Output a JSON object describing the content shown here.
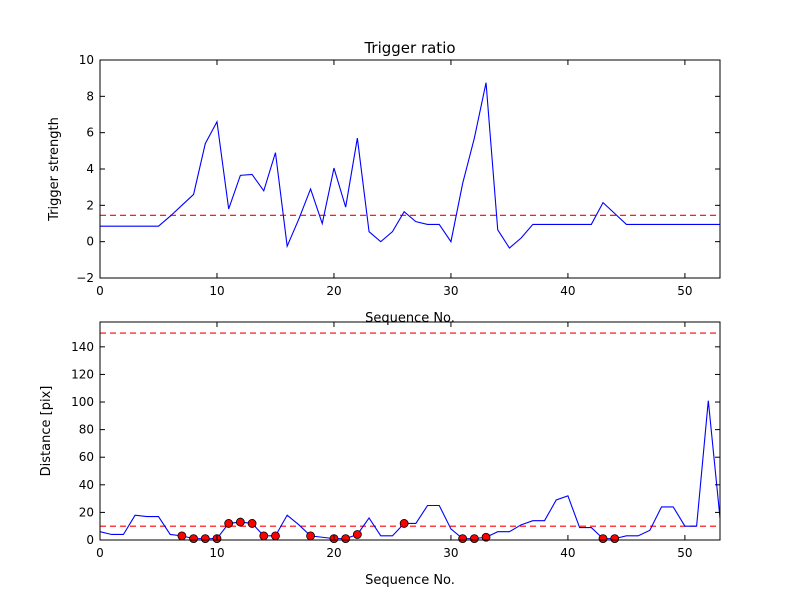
{
  "chart_data": [
    {
      "type": "line",
      "title": "Trigger ratio",
      "xlabel": "Sequence No.",
      "ylabel": "Trigger strength",
      "xlim": [
        0,
        53
      ],
      "ylim": [
        -2,
        10
      ],
      "xticks": [
        0,
        10,
        20,
        30,
        40,
        50
      ],
      "yticks": [
        -2,
        0,
        2,
        4,
        6,
        8,
        10
      ],
      "grid": false,
      "series": [
        {
          "color": "#0000ff",
          "x": [
            0,
            1,
            2,
            3,
            4,
            5,
            6,
            7,
            8,
            9,
            10,
            11,
            12,
            13,
            14,
            15,
            16,
            17,
            18,
            19,
            20,
            21,
            22,
            23,
            24,
            25,
            26,
            27,
            28,
            29,
            30,
            31,
            32,
            33,
            34,
            35,
            36,
            37,
            38,
            39,
            40,
            41,
            42,
            43,
            44,
            45,
            46,
            47,
            48,
            49,
            50,
            51,
            52,
            53
          ],
          "y": [
            0.85,
            0.85,
            0.85,
            0.85,
            0.85,
            0.85,
            1.4,
            2.0,
            2.6,
            5.4,
            6.6,
            1.8,
            3.65,
            3.7,
            2.8,
            4.9,
            -0.25,
            1.25,
            2.9,
            1.0,
            4.05,
            1.9,
            5.7,
            0.55,
            0.0,
            0.55,
            1.65,
            1.1,
            0.95,
            0.95,
            0.0,
            3.2,
            5.7,
            8.75,
            0.65,
            -0.35,
            0.2,
            0.95,
            0.95,
            0.95,
            0.95,
            0.95,
            0.95,
            2.15,
            1.55,
            0.95,
            0.95,
            0.95,
            0.95,
            0.95,
            0.95,
            0.95,
            0.95,
            0.95
          ]
        }
      ],
      "hlines": [
        {
          "y": 1.45,
          "color": "#ff0000",
          "style": "dashed"
        }
      ]
    },
    {
      "type": "line",
      "title": "",
      "xlabel": "Sequence No.",
      "ylabel": "Distance [pix]",
      "xlim": [
        0,
        53
      ],
      "ylim": [
        0,
        158
      ],
      "xticks": [
        0,
        10,
        20,
        30,
        40,
        50
      ],
      "yticks": [
        0,
        20,
        40,
        60,
        80,
        100,
        120,
        140
      ],
      "grid": false,
      "series": [
        {
          "color": "#0000ff",
          "x": [
            0,
            1,
            2,
            3,
            4,
            5,
            6,
            7,
            8,
            9,
            10,
            11,
            12,
            13,
            14,
            15,
            16,
            17,
            18,
            19,
            20,
            21,
            22,
            23,
            24,
            25,
            26,
            27,
            28,
            29,
            30,
            31,
            32,
            33,
            34,
            35,
            36,
            37,
            38,
            39,
            40,
            41,
            42,
            43,
            44,
            45,
            46,
            47,
            48,
            49,
            50,
            51,
            52,
            53
          ],
          "y": [
            6,
            4,
            4,
            18,
            17,
            17,
            4,
            3,
            1,
            1,
            1,
            12,
            13,
            12,
            3,
            3,
            18,
            11,
            3,
            2,
            1,
            1,
            4,
            16,
            3,
            3,
            12,
            12,
            25,
            25,
            8,
            1,
            1,
            2,
            6,
            6,
            11,
            14,
            14,
            29,
            32,
            9,
            9,
            1,
            1,
            3,
            3,
            7,
            24,
            24,
            10,
            10,
            101,
            16
          ]
        }
      ],
      "markers": {
        "color": "#ff0000",
        "x": [
          7,
          8,
          9,
          10,
          11,
          12,
          13,
          14,
          15,
          18,
          20,
          21,
          22,
          26,
          31,
          32,
          33,
          43,
          44
        ],
        "y": [
          3,
          1,
          1,
          1,
          12,
          13,
          12,
          3,
          3,
          3,
          1,
          1,
          4,
          12,
          1,
          1,
          2,
          1,
          1
        ]
      },
      "hlines": [
        {
          "y": 150,
          "color": "#ff0000",
          "style": "dashed"
        },
        {
          "y": 10,
          "color": "#ff0000",
          "style": "dashed"
        }
      ]
    }
  ]
}
